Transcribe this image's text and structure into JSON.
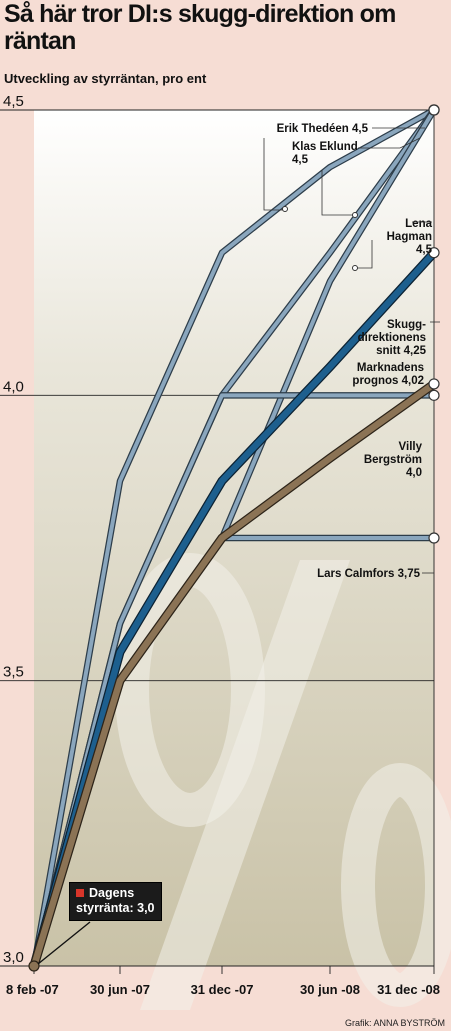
{
  "header": {
    "title": "Så här tror DI:s skugg-direktion om räntan",
    "subtitle": "Utveckling av styrräntan, pro  ent"
  },
  "callout": {
    "line1": "Dagens",
    "line2": "styrränta: 3,0"
  },
  "credit": {
    "prefix": "Grafik:",
    "name": "ANNA BYSTRÖM"
  },
  "background_watermark": "%",
  "colors": {
    "page_bg": "#f6ddd4",
    "plot_bg": "#d6d1bd",
    "line_pale": "#8aa6bd",
    "line_dark": "#1d5f8e",
    "line_brown": "#8b7355"
  },
  "chart_data": {
    "type": "line",
    "title": "Så här tror DI:s skugg-direktion om räntan",
    "subtitle": "Utveckling av styrräntan, pro  ent",
    "x_ticks": [
      "8 feb -07",
      "30 jun -07",
      "31 dec -07",
      "30 jun -08",
      "31 dec -08"
    ],
    "y_ticks": [
      "3,0",
      "3,5",
      "4,0",
      "4,5"
    ],
    "ylim": [
      3.0,
      4.5
    ],
    "grid": "horizontal",
    "series": [
      {
        "name": "Erik Thedéen",
        "label": "Erik Thedéen 4,5",
        "style": "pale",
        "points": [
          [
            "8 feb -07",
            3.0
          ],
          [
            "30 jun -07",
            3.85
          ],
          [
            "31 dec -07",
            4.25
          ],
          [
            "30 jun -08",
            4.4
          ],
          [
            "31 dec -08",
            4.5
          ]
        ]
      },
      {
        "name": "Klas Eklund",
        "label": "Klas Eklund 4,5",
        "style": "pale",
        "points": [
          [
            "8 feb -07",
            3.0
          ],
          [
            "30 jun -07",
            3.6
          ],
          [
            "31 dec -07",
            4.0
          ],
          [
            "30 jun -08",
            4.25
          ],
          [
            "31 dec -08",
            4.5
          ]
        ]
      },
      {
        "name": "Lena Hagman",
        "label": "Lena Hagman 4,5",
        "style": "pale",
        "points": [
          [
            "8 feb -07",
            3.0
          ],
          [
            "30 jun -07",
            3.5
          ],
          [
            "31 dec -07",
            3.75
          ],
          [
            "30 jun -08",
            4.2
          ],
          [
            "31 dec -08",
            4.5
          ]
        ]
      },
      {
        "name": "Villy Bergström",
        "label": "Villy Bergström 4,0",
        "style": "pale",
        "points": [
          [
            "8 feb -07",
            3.0
          ],
          [
            "30 jun -07",
            3.6
          ],
          [
            "31 dec -07",
            4.0
          ],
          [
            "30 jun -08",
            4.0
          ],
          [
            "31 dec -08",
            4.0
          ]
        ]
      },
      {
        "name": "Lars Calmfors",
        "label": "Lars Calmfors 3,75",
        "style": "pale",
        "points": [
          [
            "8 feb -07",
            3.0
          ],
          [
            "30 jun -07",
            3.5
          ],
          [
            "31 dec -07",
            3.75
          ],
          [
            "30 jun -08",
            3.75
          ],
          [
            "31 dec -08",
            3.75
          ]
        ]
      },
      {
        "name": "Skuggdirektionens snitt",
        "label": "Skugg-direktionens snitt 4,25",
        "style": "dark",
        "points": [
          [
            "8 feb -07",
            3.0
          ],
          [
            "30 jun -07",
            3.55
          ],
          [
            "31 dec -07",
            3.85
          ],
          [
            "30 jun -08",
            4.05
          ],
          [
            "31 dec -08",
            4.25
          ]
        ]
      },
      {
        "name": "Marknadens prognos",
        "label": "Marknadens prognos 4,02",
        "style": "brown",
        "points": [
          [
            "8 feb -07",
            3.0
          ],
          [
            "30 jun -07",
            3.5
          ],
          [
            "31 dec -07",
            3.75
          ],
          [
            "30 jun -08",
            3.89
          ],
          [
            "31 dec -08",
            4.02
          ]
        ]
      }
    ]
  }
}
